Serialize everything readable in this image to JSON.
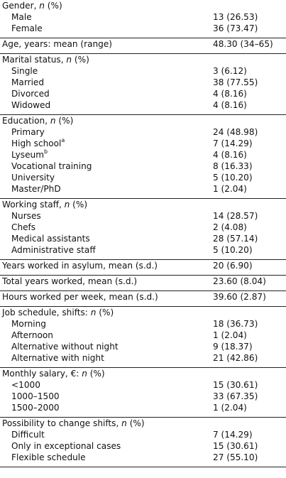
{
  "sections": [
    {
      "header": "Gender, n (%)",
      "value": "",
      "rows": [
        {
          "label": "Male",
          "value": "13 (26.53)"
        },
        {
          "label": "Female",
          "value": "36 (73.47)"
        }
      ]
    },
    {
      "header": "Age, years: mean (range)",
      "value": "48.30 (34–65)",
      "rows": []
    },
    {
      "header": "Marital status, n (%)",
      "value": "",
      "rows": [
        {
          "label": "Single",
          "value": "3 (6.12)"
        },
        {
          "label": "Married",
          "value": "38 (77.55)"
        },
        {
          "label": "Divorced",
          "value": "4 (8.16)"
        },
        {
          "label": "Widowed",
          "value": "4 (8.16)"
        }
      ]
    },
    {
      "header": "Education, n (%)",
      "value": "",
      "rows": [
        {
          "label": "Primary",
          "value": "24 (48.98)"
        },
        {
          "label": "High school",
          "sup": "a",
          "value": "7 (14.29)"
        },
        {
          "label": "Lyseum",
          "sup": "b",
          "value": "4 (8.16)"
        },
        {
          "label": "Vocational training",
          "value": "8 (16.33)"
        },
        {
          "label": "University",
          "value": "5 (10.20)"
        },
        {
          "label": "Master/PhD",
          "value": "1 (2.04)"
        }
      ]
    },
    {
      "header": "Working staff, n (%)",
      "value": "",
      "rows": [
        {
          "label": "Nurses",
          "value": "14 (28.57)"
        },
        {
          "label": "Chefs",
          "value": "2 (4.08)"
        },
        {
          "label": "Medical assistants",
          "value": "28 (57.14)"
        },
        {
          "label": "Administrative staff",
          "value": "5 (10.20)"
        }
      ]
    },
    {
      "header": "Years worked in asylum, mean (s.d.)",
      "value": "20 (6.90)",
      "rows": []
    },
    {
      "header": "Total years worked, mean (s.d.)",
      "value": "23.60 (8.04)",
      "rows": []
    },
    {
      "header": "Hours worked per week, mean (s.d.)",
      "value": "39.60 (2.87)",
      "rows": []
    },
    {
      "header": "Job schedule, shifts: n (%)",
      "value": "",
      "rows": [
        {
          "label": "Morning",
          "value": "18 (36.73)"
        },
        {
          "label": "Afternoon",
          "value": "1 (2.04)"
        },
        {
          "label": "Alternative without night",
          "value": "9 (18.37)"
        },
        {
          "label": "Alternative with night",
          "value": "21 (42.86)"
        }
      ]
    },
    {
      "header": "Monthly salary, €: n (%)",
      "value": "",
      "rows": [
        {
          "label": "<1000",
          "value": "15 (30.61)"
        },
        {
          "label": "1000–1500",
          "value": "33 (67.35)"
        },
        {
          "label": "1500–2000",
          "value": "1 (2.04)"
        }
      ]
    },
    {
      "header": "Possibility to change shifts, n (%)",
      "value": "",
      "rows": [
        {
          "label": "Difficult",
          "value": "7 (14.29)"
        },
        {
          "label": "Only in exceptional cases",
          "value": "15 (30.61)"
        },
        {
          "label": "Flexible schedule",
          "value": "27 (55.10)"
        }
      ]
    }
  ]
}
